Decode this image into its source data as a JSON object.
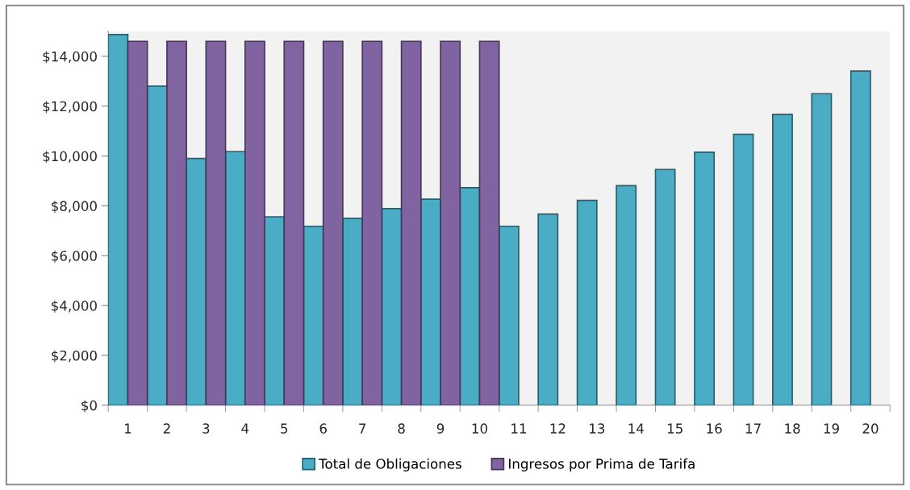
{
  "chart_data": {
    "type": "bar",
    "categories": [
      "1",
      "2",
      "3",
      "4",
      "5",
      "6",
      "7",
      "8",
      "9",
      "10",
      "11",
      "12",
      "13",
      "14",
      "15",
      "16",
      "17",
      "18",
      "19",
      "20"
    ],
    "series": [
      {
        "name": "Total de Obligaciones",
        "color": "#4bacc6",
        "values": [
          14870,
          12800,
          9900,
          10180,
          7560,
          7180,
          7500,
          7890,
          8270,
          8730,
          7180,
          7670,
          8220,
          8810,
          9460,
          10150,
          10870,
          11670,
          12500,
          13410
        ]
      },
      {
        "name": "Ingresos por Prima de Tarifa",
        "color": "#8064a2",
        "values": [
          14600,
          14600,
          14600,
          14600,
          14600,
          14600,
          14600,
          14600,
          14600,
          14600,
          null,
          null,
          null,
          null,
          null,
          null,
          null,
          null,
          null,
          null
        ]
      }
    ],
    "ylim": [
      0,
      15000
    ],
    "yticks": [
      {
        "value": 0,
        "label": "$0"
      },
      {
        "value": 2000,
        "label": "$2,000"
      },
      {
        "value": 4000,
        "label": "$4,000"
      },
      {
        "value": 6000,
        "label": "$6,000"
      },
      {
        "value": 8000,
        "label": "$8,000"
      },
      {
        "value": 10000,
        "label": "$10,000"
      },
      {
        "value": 12000,
        "label": "$12,000"
      },
      {
        "value": 14000,
        "label": "$14,000"
      }
    ],
    "legend": "bottom"
  }
}
